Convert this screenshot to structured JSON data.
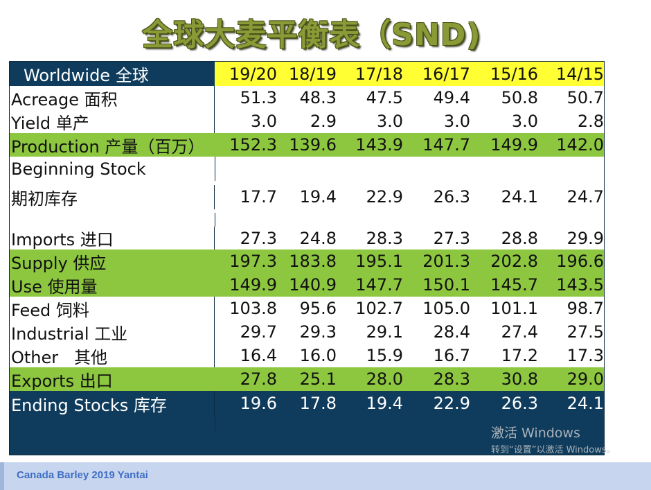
{
  "title": "全球大麦平衡表（SND)",
  "header": {
    "label": "Worldwide 全球",
    "years": [
      "19/20",
      "18/19",
      "17/18",
      "16/17",
      "15/16",
      "14/15"
    ]
  },
  "rows": {
    "acreage": {
      "label": "Acreage 面积",
      "values": [
        "51.3",
        "48.3",
        "47.5",
        "49.4",
        "50.8",
        "50.7"
      ]
    },
    "yield": {
      "label": "Yield 单产",
      "values": [
        "3.0",
        "2.9",
        "3.0",
        "3.0",
        "3.0",
        "2.8"
      ]
    },
    "production": {
      "label": "Production 产量（百万）",
      "values": [
        "152.3",
        "139.6",
        "143.9",
        "147.7",
        "149.9",
        "142.0"
      ]
    },
    "beginning_stock": {
      "label": "Beginning Stock",
      "label2": "期初库存",
      "values": [
        "17.7",
        "19.4",
        "22.9",
        "26.3",
        "24.1",
        "24.7"
      ]
    },
    "imports": {
      "label": "Imports 进口",
      "values": [
        "27.3",
        "24.8",
        "28.3",
        "27.3",
        "28.8",
        "29.9"
      ]
    },
    "supply": {
      "label": "Supply 供应",
      "values": [
        "197.3",
        "183.8",
        "195.1",
        "201.3",
        "202.8",
        "196.6"
      ]
    },
    "use": {
      "label": "Use 使用量",
      "values": [
        "149.9",
        "140.9",
        "147.7",
        "150.1",
        "145.7",
        "143.5"
      ]
    },
    "feed": {
      "label": "Feed  饲料",
      "values": [
        "103.8",
        "95.6",
        "102.7",
        "105.0",
        "101.1",
        "98.7"
      ]
    },
    "industrial": {
      "label": "Industrial 工业",
      "values": [
        "29.7",
        "29.3",
        "29.1",
        "28.4",
        "27.4",
        "27.5"
      ]
    },
    "other": {
      "label": "Other   其他",
      "values": [
        "16.4",
        "16.0",
        "15.9",
        "16.7",
        "17.2",
        "17.3"
      ]
    },
    "exports": {
      "label": "Exports 出口",
      "values": [
        "27.8",
        "25.1",
        "28.0",
        "28.3",
        "30.8",
        "29.0"
      ]
    },
    "ending_stocks": {
      "label": "Ending Stocks 库存",
      "values": [
        "19.6",
        "17.8",
        "19.4",
        "22.9",
        "26.3",
        "24.1"
      ]
    }
  },
  "watermark": {
    "line1": "激活 Windows",
    "line2": "转到“设置”以激活 Windows。"
  },
  "footer": {
    "text": "Canada Barley 2019 Yantai"
  },
  "colors": {
    "navy": "#0f3c5c",
    "green": "#8dc63f",
    "yellow": "#ffff33",
    "title_olive": "#8a9a37",
    "footer_bg": "#c7d6ee"
  }
}
